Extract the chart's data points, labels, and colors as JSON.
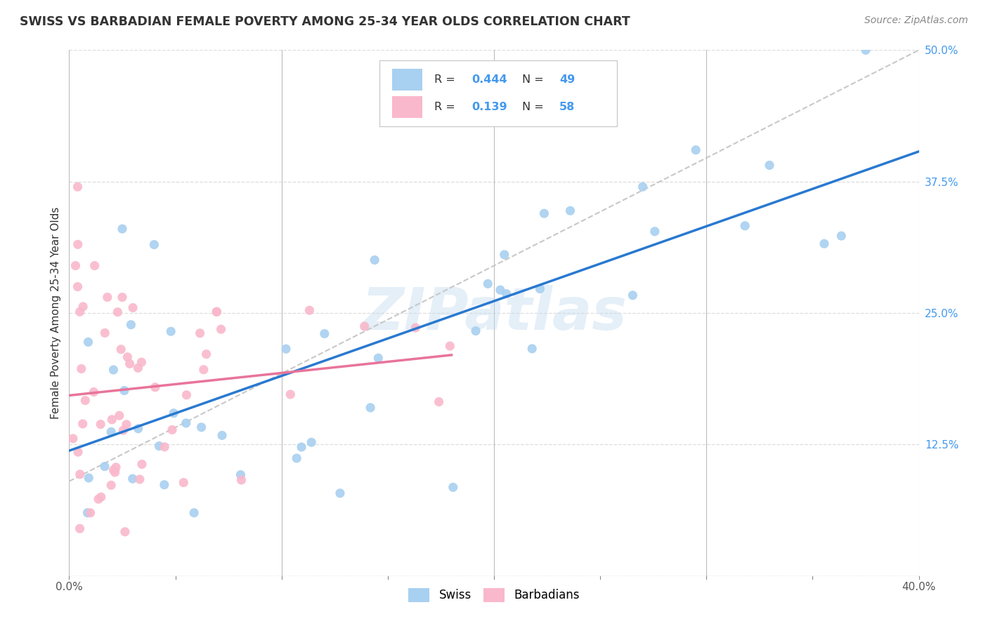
{
  "title": "SWISS VS BARBADIAN FEMALE POVERTY AMONG 25-34 YEAR OLDS CORRELATION CHART",
  "source": "Source: ZipAtlas.com",
  "ylabel": "Female Poverty Among 25-34 Year Olds",
  "xlabel_ticks": [
    "0.0%",
    "40.0%"
  ],
  "xlabel_vals": [
    0.0,
    0.4
  ],
  "ylabel_ticks_right": [
    "50.0%",
    "37.5%",
    "25.0%",
    "12.5%"
  ],
  "ylabel_vals": [
    0.0,
    0.125,
    0.25,
    0.375,
    0.5
  ],
  "xlim": [
    0.0,
    0.4
  ],
  "ylim": [
    0.0,
    0.5
  ],
  "swiss_color": "#A8D0F0",
  "barbadian_color": "#F9B8CB",
  "swiss_R": 0.444,
  "swiss_N": 49,
  "barbadian_R": 0.139,
  "barbadian_N": 58,
  "swiss_line_color": "#2979D0",
  "barbadian_line_color": "#E8749A",
  "trendline_color": "#C8C8C8",
  "watermark": "ZIPatlas",
  "background_color": "#FFFFFF",
  "grid_color": "#DDDDDD",
  "blue_text_color": "#4499EE",
  "dark_text_color": "#333333"
}
